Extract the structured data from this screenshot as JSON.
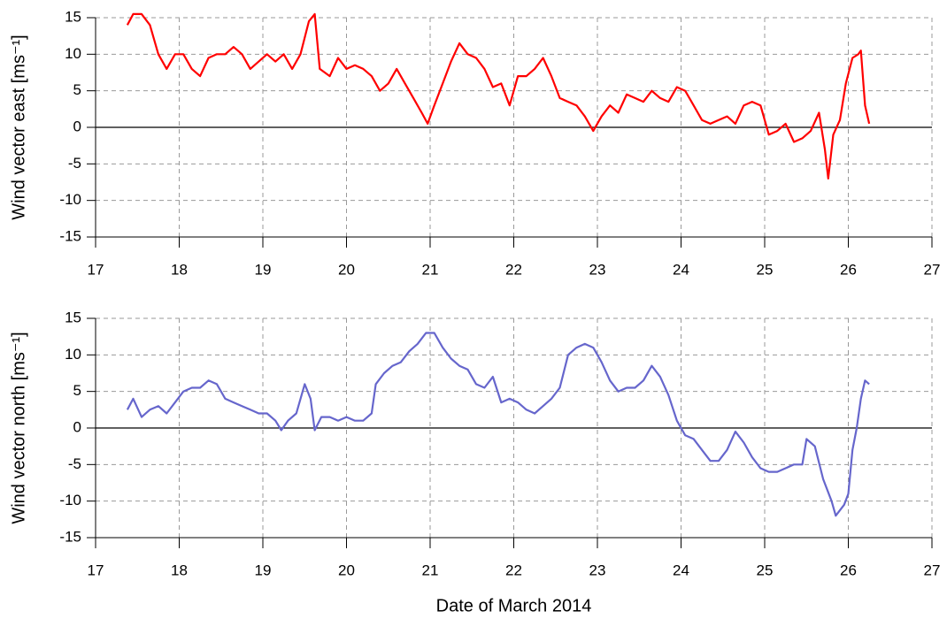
{
  "chart_data": [
    {
      "type": "line",
      "ylabel": "Wind vector east [ms⁻¹]",
      "color": "#ff0000",
      "grid": true,
      "zero_line": true,
      "xlim": [
        17,
        27
      ],
      "xticks": [
        17,
        18,
        19,
        20,
        21,
        22,
        23,
        24,
        25,
        26,
        27
      ],
      "ylim": [
        -15,
        15
      ],
      "yticks": [
        -15,
        -10,
        -5,
        0,
        5,
        10,
        15
      ],
      "x": [
        17.38,
        17.45,
        17.55,
        17.65,
        17.75,
        17.85,
        17.95,
        18.05,
        18.15,
        18.25,
        18.35,
        18.45,
        18.55,
        18.65,
        18.75,
        18.85,
        18.95,
        19.05,
        19.15,
        19.25,
        19.35,
        19.45,
        19.55,
        19.62,
        19.68,
        19.8,
        19.9,
        20.0,
        20.1,
        20.2,
        20.3,
        20.4,
        20.5,
        20.6,
        20.7,
        20.8,
        20.9,
        20.97,
        21.05,
        21.15,
        21.25,
        21.35,
        21.45,
        21.55,
        21.65,
        21.75,
        21.85,
        21.95,
        22.05,
        22.15,
        22.25,
        22.35,
        22.45,
        22.55,
        22.65,
        22.75,
        22.85,
        22.95,
        23.05,
        23.15,
        23.25,
        23.35,
        23.45,
        23.55,
        23.65,
        23.75,
        23.85,
        23.95,
        24.05,
        24.15,
        24.25,
        24.35,
        24.45,
        24.55,
        24.65,
        24.75,
        24.85,
        24.95,
        25.05,
        25.15,
        25.25,
        25.35,
        25.45,
        25.55,
        25.65,
        25.72,
        25.76,
        25.82,
        25.9,
        25.97,
        26.05,
        26.12,
        26.15,
        26.2,
        26.25
      ],
      "values": [
        14,
        15.5,
        15.5,
        14,
        10,
        8,
        10,
        10,
        8,
        7,
        9.5,
        10,
        10,
        11,
        10,
        8,
        9,
        10,
        9,
        10,
        8,
        10,
        14.5,
        15.5,
        8,
        7,
        9.5,
        8,
        8.5,
        8,
        7,
        5,
        6,
        8,
        6,
        4,
        2,
        0.5,
        3,
        6,
        9,
        11.5,
        10,
        9.5,
        8,
        5.5,
        6,
        3,
        7,
        7,
        8,
        9.5,
        7,
        4,
        3.5,
        3,
        1.5,
        -0.5,
        1.5,
        3,
        2,
        4.5,
        4,
        3.5,
        5,
        4,
        3.5,
        5.5,
        5,
        3,
        1,
        0.5,
        1,
        1.5,
        0.5,
        3,
        3.5,
        3,
        -1,
        -0.5,
        0.5,
        -2,
        -1.5,
        -0.5,
        2,
        -3,
        -7,
        -1,
        1,
        6,
        9.5,
        10,
        10.5,
        3,
        0.5
      ]
    },
    {
      "type": "line",
      "ylabel": "Wind vector north [ms⁻¹]",
      "xlabel": "Date of March 2014",
      "color": "#6666cc",
      "grid": true,
      "zero_line": true,
      "xlim": [
        17,
        27
      ],
      "xticks": [
        17,
        18,
        19,
        20,
        21,
        22,
        23,
        24,
        25,
        26,
        27
      ],
      "ylim": [
        -15,
        15
      ],
      "yticks": [
        -15,
        -10,
        -5,
        0,
        5,
        10,
        15
      ],
      "x": [
        17.38,
        17.45,
        17.55,
        17.65,
        17.75,
        17.85,
        17.95,
        18.05,
        18.15,
        18.25,
        18.35,
        18.45,
        18.55,
        18.65,
        18.75,
        18.85,
        18.95,
        19.05,
        19.15,
        19.22,
        19.3,
        19.4,
        19.5,
        19.57,
        19.62,
        19.7,
        19.8,
        19.9,
        20.0,
        20.1,
        20.2,
        20.3,
        20.35,
        20.45,
        20.55,
        20.65,
        20.75,
        20.85,
        20.95,
        21.05,
        21.15,
        21.25,
        21.35,
        21.45,
        21.55,
        21.65,
        21.75,
        21.85,
        21.95,
        22.05,
        22.15,
        22.25,
        22.35,
        22.45,
        22.55,
        22.65,
        22.75,
        22.85,
        22.95,
        23.05,
        23.15,
        23.25,
        23.35,
        23.45,
        23.55,
        23.65,
        23.75,
        23.85,
        23.95,
        24.05,
        24.15,
        24.25,
        24.35,
        24.45,
        24.55,
        24.65,
        24.75,
        24.85,
        24.95,
        25.05,
        25.15,
        25.25,
        25.35,
        25.45,
        25.5,
        25.6,
        25.7,
        25.8,
        25.85,
        25.95,
        26.0,
        26.05,
        26.1,
        26.15,
        26.2,
        26.25
      ],
      "values": [
        2.5,
        4,
        1.5,
        2.5,
        3,
        2,
        3.5,
        5,
        5.5,
        5.5,
        6.5,
        6,
        4,
        3.5,
        3,
        2.5,
        2,
        2,
        1,
        -0.3,
        1,
        2,
        6,
        4,
        -0.3,
        1.5,
        1.5,
        1,
        1.5,
        1,
        1,
        2,
        6,
        7.5,
        8.5,
        9,
        10.5,
        11.5,
        13,
        13,
        11,
        9.5,
        8.5,
        8,
        6,
        5.5,
        7,
        3.5,
        4,
        3.5,
        2.5,
        2,
        3,
        4,
        5.5,
        10,
        11,
        11.5,
        11,
        9,
        6.5,
        5,
        5.5,
        5.5,
        6.5,
        8.5,
        7,
        4.5,
        1,
        -1,
        -1.5,
        -3,
        -4.5,
        -4.5,
        -3,
        -0.5,
        -2,
        -4,
        -5.5,
        -6,
        -6,
        -5.5,
        -5,
        -5,
        -1.5,
        -2.5,
        -7,
        -10,
        -12,
        -10.5,
        -9,
        -3,
        0,
        4,
        6.5,
        6
      ]
    }
  ]
}
